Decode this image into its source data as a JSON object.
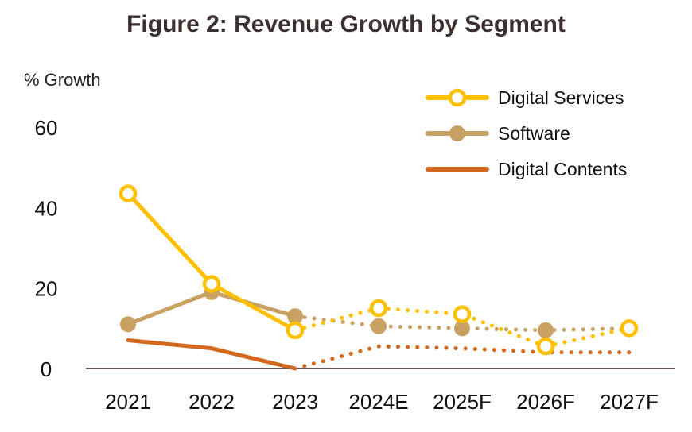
{
  "chart_data": {
    "type": "line",
    "title": "Figure 2: Revenue Growth by Segment",
    "ylabel": "% Growth",
    "xlabel": "",
    "ylim": [
      0,
      60
    ],
    "yticks": [
      0,
      20,
      40,
      60
    ],
    "categories": [
      "2021",
      "2022",
      "2023",
      "2024E",
      "2025F",
      "2026F",
      "2027F"
    ],
    "actual_through": "2023",
    "legend_position": "top-right",
    "grid": false,
    "series": [
      {
        "name": "Digital Services",
        "color": "#FFC000",
        "marker": "hollow-circle",
        "values": [
          43.5,
          21,
          9.5,
          15,
          13.5,
          5.5,
          10
        ]
      },
      {
        "name": "Software",
        "color": "#C9A263",
        "marker": "filled-circle",
        "values": [
          11,
          19,
          13,
          10.5,
          10,
          9.5,
          10
        ]
      },
      {
        "name": "Digital Contents",
        "color": "#D2691E",
        "marker": "none",
        "values": [
          7,
          5,
          0,
          5.5,
          5,
          4,
          4
        ]
      }
    ]
  }
}
